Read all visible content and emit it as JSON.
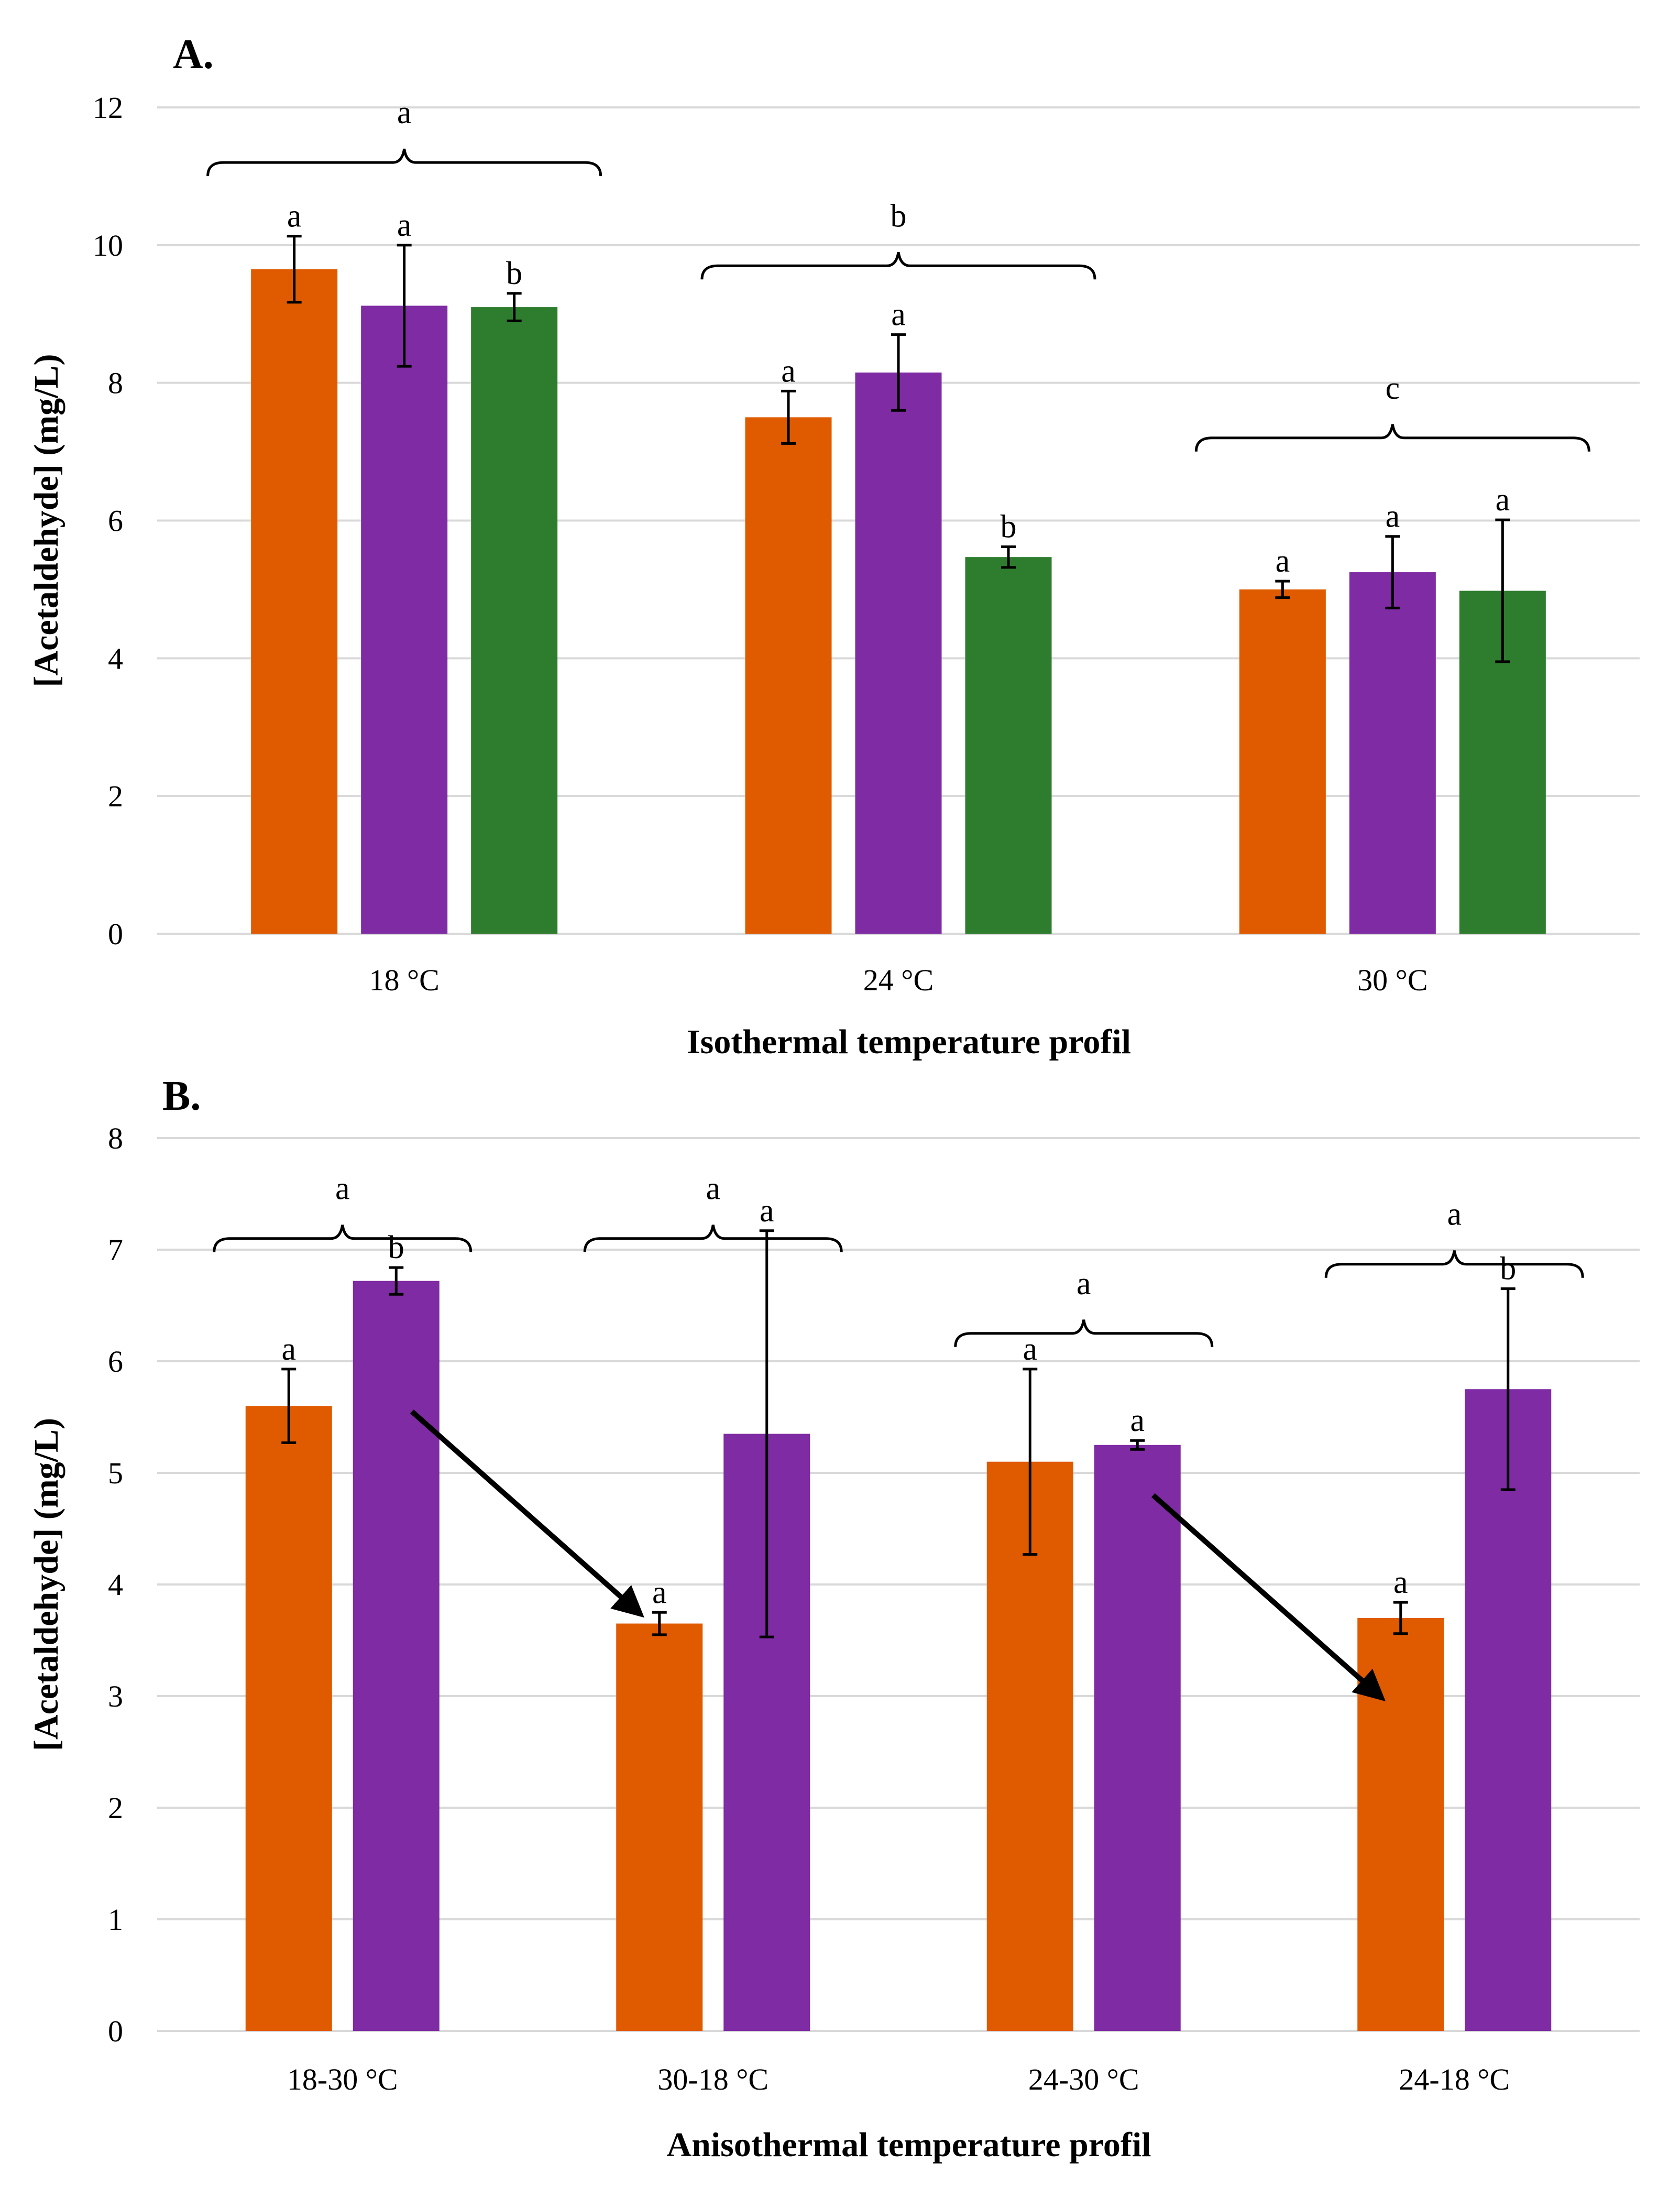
{
  "colors": {
    "series1": "#e05a00",
    "series2": "#7f2ba3",
    "series3": "#2e7d2e"
  },
  "chart_data": [
    {
      "panel": "A.",
      "type": "bar",
      "xlabel": "Isothermal temperature profil",
      "ylabel": "[Acetaldehyde] (mg/L)",
      "ylim": [
        0,
        12
      ],
      "yticks": [
        0,
        2,
        4,
        6,
        8,
        10,
        12
      ],
      "grid": true,
      "categories": [
        "18 °C",
        "24 °C",
        "30 °C"
      ],
      "series": [
        {
          "values": [
            9.65,
            7.5,
            5.0
          ],
          "errors": [
            0.48,
            0.38,
            0.12
          ],
          "letters": [
            "a",
            "a",
            "a"
          ],
          "color": "series1"
        },
        {
          "values": [
            9.12,
            8.15,
            5.25
          ],
          "errors": [
            0.88,
            0.55,
            0.52
          ],
          "letters": [
            "a",
            "a",
            "a"
          ],
          "color": "series2"
        },
        {
          "values": [
            9.1,
            5.47,
            4.98
          ],
          "errors": [
            0.2,
            0.15,
            1.03
          ],
          "letters": [
            "b",
            "b",
            "a"
          ],
          "color": "series3"
        }
      ],
      "group_letters": [
        "a",
        "b",
        "c"
      ],
      "group_letter_levels": [
        11.2,
        9.7,
        7.2
      ],
      "arrows": []
    },
    {
      "panel": "B.",
      "type": "bar",
      "xlabel": "Anisothermal temperature profil",
      "ylabel": "[Acetaldehyde] (mg/L)",
      "ylim": [
        0,
        8
      ],
      "yticks": [
        0,
        1,
        2,
        3,
        4,
        5,
        6,
        7,
        8
      ],
      "grid": true,
      "categories": [
        "18-30 °C",
        "30-18 °C",
        "24-30 °C",
        "24-18 °C"
      ],
      "series": [
        {
          "values": [
            5.6,
            3.65,
            5.1,
            3.7
          ],
          "errors": [
            0.33,
            0.1,
            0.83,
            0.14
          ],
          "letters": [
            "a",
            "a",
            "a",
            "a"
          ],
          "color": "series1"
        },
        {
          "values": [
            6.72,
            5.35,
            5.25,
            5.75
          ],
          "errors": [
            0.12,
            1.82,
            0.04,
            0.9
          ],
          "letters": [
            "b",
            "a",
            "a",
            "b"
          ],
          "color": "series2"
        }
      ],
      "group_letters": [
        "a",
        "a",
        "a",
        "a"
      ],
      "group_letter_levels": [
        7.1,
        7.1,
        6.25,
        6.87
      ],
      "arrows": [
        {
          "from_category": 0,
          "from_value": 5.55,
          "to_category": 1,
          "to_value": 3.75
        },
        {
          "from_category": 2,
          "from_value": 4.8,
          "to_category": 3,
          "to_value": 3.0
        }
      ]
    }
  ]
}
